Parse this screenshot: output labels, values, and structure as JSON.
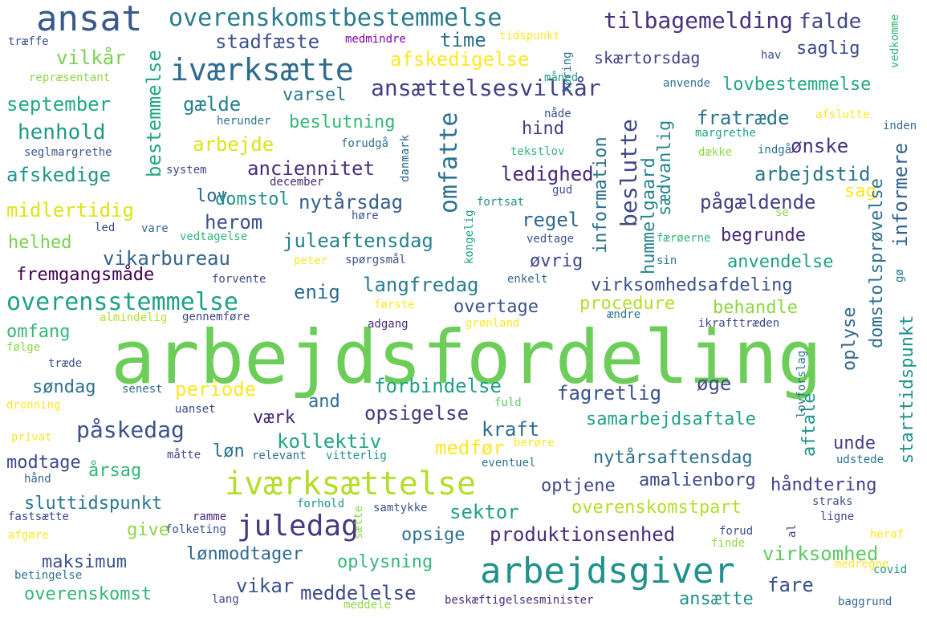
{
  "word_cloud": {
    "words": [
      {
        "text": "arbejdsfordeling",
        "color": "#6cce59"
      },
      {
        "text": "ansat",
        "color": "#3a5a8c"
      },
      {
        "text": "overenskomstbestemmelse",
        "color": "#287d8e"
      },
      {
        "text": "iværksætte",
        "color": "#2e6b8e"
      },
      {
        "text": "iværksættelse",
        "color": "#b4de2c"
      },
      {
        "text": "arbejdsgiver",
        "color": "#21918c"
      },
      {
        "text": "tilbagemelding",
        "color": "#46337f"
      },
      {
        "text": "falde",
        "color": "#3e4a89"
      },
      {
        "text": "ansættelsesvilkår",
        "color": "#424086"
      },
      {
        "text": "omfatte",
        "color": "#2c728e"
      },
      {
        "text": "overensstemmelse",
        "color": "#1fa187"
      },
      {
        "text": "juledag",
        "color": "#443a83"
      },
      {
        "text": "påskedag",
        "color": "#3b528b"
      },
      {
        "text": "beslutte",
        "color": "#3e4989"
      },
      {
        "text": "stadfæste",
        "color": "#3b528b"
      },
      {
        "text": "time",
        "color": "#2d708e"
      },
      {
        "text": "afskedigelse",
        "color": "#fde725"
      },
      {
        "text": "saglig",
        "color": "#3e4989"
      },
      {
        "text": "skærtorsdag",
        "color": "#414487"
      },
      {
        "text": "vilkår",
        "color": "#7ad151"
      },
      {
        "text": "lovbestemmelse",
        "color": "#22a884"
      },
      {
        "text": "september",
        "color": "#22a884"
      },
      {
        "text": "gælde",
        "color": "#26828e"
      },
      {
        "text": "varsel",
        "color": "#2a788e"
      },
      {
        "text": "fratræde",
        "color": "#2a788e"
      },
      {
        "text": "henhold",
        "color": "#1f998a"
      },
      {
        "text": "beslutning",
        "color": "#35b779"
      },
      {
        "text": "hind",
        "color": "#433e85"
      },
      {
        "text": "ønske",
        "color": "#46337f"
      },
      {
        "text": "arbejde",
        "color": "#dde318"
      },
      {
        "text": "bestemmelse",
        "color": "#22a884"
      },
      {
        "text": "afskedige",
        "color": "#1f968b"
      },
      {
        "text": "anciennitet",
        "color": "#472d7b"
      },
      {
        "text": "ledighed",
        "color": "#482878"
      },
      {
        "text": "arbejdstid",
        "color": "#2a788e"
      },
      {
        "text": "informere",
        "color": "#33638d"
      },
      {
        "text": "lov",
        "color": "#31688e"
      },
      {
        "text": "domstol",
        "color": "#21918c"
      },
      {
        "text": "nytårsdag",
        "color": "#355f8d"
      },
      {
        "text": "sag",
        "color": "#fde725"
      },
      {
        "text": "midlertidig",
        "color": "#dde318"
      },
      {
        "text": "pågældende",
        "color": "#424086"
      },
      {
        "text": "information",
        "color": "#2c728e"
      },
      {
        "text": "sædvanlig",
        "color": "#25858e"
      },
      {
        "text": "hummelgaard",
        "color": "#26828e"
      },
      {
        "text": "herom",
        "color": "#3b528b"
      },
      {
        "text": "juleaftensdag",
        "color": "#25838e"
      },
      {
        "text": "regel",
        "color": "#31688e"
      },
      {
        "text": "begrunde",
        "color": "#482878"
      },
      {
        "text": "helhed",
        "color": "#7ad151"
      },
      {
        "text": "domstolsprøvelse",
        "color": "#2c728e"
      },
      {
        "text": "vikarbureau",
        "color": "#33638d"
      },
      {
        "text": "øvrig",
        "color": "#3e4989"
      },
      {
        "text": "anvendelse",
        "color": "#1fa187"
      },
      {
        "text": "fremgangsmåde",
        "color": "#440154"
      },
      {
        "text": "enig",
        "color": "#2e6b8e"
      },
      {
        "text": "langfredag",
        "color": "#287d8e"
      },
      {
        "text": "virksomhedsafdeling",
        "color": "#3b528b"
      },
      {
        "text": "procedure",
        "color": "#b4de2c"
      },
      {
        "text": "overtage",
        "color": "#3b528b"
      },
      {
        "text": "behandle",
        "color": "#8fd744"
      },
      {
        "text": "oplyse",
        "color": "#31688e"
      },
      {
        "text": "starttidspunkt",
        "color": "#21918c"
      },
      {
        "text": "omfang",
        "color": "#35b779"
      },
      {
        "text": "periode",
        "color": "#fde725"
      },
      {
        "text": "søndag",
        "color": "#2d708e"
      },
      {
        "text": "forbindelse",
        "color": "#1fa187"
      },
      {
        "text": "øge",
        "color": "#3e4a89"
      },
      {
        "text": "fagretlig",
        "color": "#3b528b"
      },
      {
        "text": "and",
        "color": "#2d708e"
      },
      {
        "text": "opsigelse",
        "color": "#443983"
      },
      {
        "text": "værk",
        "color": "#482878"
      },
      {
        "text": "kraft",
        "color": "#2e6b8e"
      },
      {
        "text": "samarbejdsaftale",
        "color": "#1fa187"
      },
      {
        "text": "aftale",
        "color": "#1f968b"
      },
      {
        "text": "unde",
        "color": "#433e85"
      },
      {
        "text": "kollektiv",
        "color": "#20a386"
      },
      {
        "text": "medfør",
        "color": "#fde725"
      },
      {
        "text": "modtage",
        "color": "#3e4989"
      },
      {
        "text": "årsag",
        "color": "#35b779"
      },
      {
        "text": "løn",
        "color": "#2c728e"
      },
      {
        "text": "nytårsaftensdag",
        "color": "#2d708e"
      },
      {
        "text": "optjene",
        "color": "#3e4989"
      },
      {
        "text": "amalienborg",
        "color": "#3e4989"
      },
      {
        "text": "håndtering",
        "color": "#414487"
      },
      {
        "text": "sluttidspunkt",
        "color": "#2a788e"
      },
      {
        "text": "sektor",
        "color": "#1fa187"
      },
      {
        "text": "overenskomstpart",
        "color": "#b4de2c"
      },
      {
        "text": "give",
        "color": "#8fd744"
      },
      {
        "text": "opsige",
        "color": "#2c728e"
      },
      {
        "text": "produktionsenhed",
        "color": "#472d7b"
      },
      {
        "text": "maksimum",
        "color": "#3b528b"
      },
      {
        "text": "lønmodtager",
        "color": "#31688e"
      },
      {
        "text": "oplysning",
        "color": "#35b779"
      },
      {
        "text": "virksomhed",
        "color": "#5ec962"
      },
      {
        "text": "vikar",
        "color": "#3b528b"
      },
      {
        "text": "meddelelse",
        "color": "#3e4989"
      },
      {
        "text": "fare",
        "color": "#3b528b"
      },
      {
        "text": "overenskomst",
        "color": "#35b779"
      },
      {
        "text": "ansætte",
        "color": "#21918c"
      },
      {
        "text": "træffe",
        "color": "#3b528b"
      },
      {
        "text": "medmindre",
        "color": "#7e03a8"
      },
      {
        "text": "tidspunkt",
        "color": "#fde725"
      },
      {
        "text": "høring",
        "color": "#2d708e"
      },
      {
        "text": "hav",
        "color": "#3e4989"
      },
      {
        "text": "vedkomme",
        "color": "#35b779"
      },
      {
        "text": "repræsentant",
        "color": "#8fd744"
      },
      {
        "text": "måned",
        "color": "#1fa187"
      },
      {
        "text": "anvende",
        "color": "#2c728e"
      },
      {
        "text": "herunder",
        "color": "#2c728e"
      },
      {
        "text": "nåde",
        "color": "#3b528b"
      },
      {
        "text": "afslutte",
        "color": "#fde725"
      },
      {
        "text": "margrethe",
        "color": "#20a386"
      },
      {
        "text": "inden",
        "color": "#31688e"
      },
      {
        "text": "seglmargrethe",
        "color": "#3b528b"
      },
      {
        "text": "forudgå",
        "color": "#2c728e"
      },
      {
        "text": "danmark",
        "color": "#31688e"
      },
      {
        "text": "tekstlov",
        "color": "#35b779"
      },
      {
        "text": "dække",
        "color": "#8fd744"
      },
      {
        "text": "indgå",
        "color": "#2d708e"
      },
      {
        "text": "system",
        "color": "#3e4989"
      },
      {
        "text": "december",
        "color": "#482878"
      },
      {
        "text": "fortsat",
        "color": "#21918c"
      },
      {
        "text": "gud",
        "color": "#3b528b"
      },
      {
        "text": "høre",
        "color": "#3b528b"
      },
      {
        "text": "se",
        "color": "#8fd744"
      },
      {
        "text": "led",
        "color": "#3e4989"
      },
      {
        "text": "vare",
        "color": "#31688e"
      },
      {
        "text": "vedtagelse",
        "color": "#35b779"
      },
      {
        "text": "kongelig",
        "color": "#1fa187"
      },
      {
        "text": "vedtage",
        "color": "#3b528b"
      },
      {
        "text": "færøerne",
        "color": "#35b779"
      },
      {
        "text": "peter",
        "color": "#fde725"
      },
      {
        "text": "spørgsmål",
        "color": "#3b528b"
      },
      {
        "text": "sin",
        "color": "#2c728e"
      },
      {
        "text": "forvente",
        "color": "#3e4989"
      },
      {
        "text": "enkelt",
        "color": "#31688e"
      },
      {
        "text": "gø",
        "color": "#2a788e"
      },
      {
        "text": "første",
        "color": "#fde725"
      },
      {
        "text": "almindelig",
        "color": "#b4de2c"
      },
      {
        "text": "gennemføre",
        "color": "#3e4989"
      },
      {
        "text": "adgang",
        "color": "#472d7b"
      },
      {
        "text": "grønland",
        "color": "#fde725"
      },
      {
        "text": "ændre",
        "color": "#2a788e"
      },
      {
        "text": "ikrafttræden",
        "color": "#3e4989"
      },
      {
        "text": "følge",
        "color": "#8fd744"
      },
      {
        "text": "træde",
        "color": "#3b528b"
      },
      {
        "text": "lovforslag",
        "color": "#2c728e"
      },
      {
        "text": "senest",
        "color": "#31688e"
      },
      {
        "text": "fuld",
        "color": "#5ec962"
      },
      {
        "text": "dronning",
        "color": "#fde725"
      },
      {
        "text": "uanset",
        "color": "#3e4989"
      },
      {
        "text": "privat",
        "color": "#fde725"
      },
      {
        "text": "berøre",
        "color": "#fde725"
      },
      {
        "text": "måtte",
        "color": "#3e4989"
      },
      {
        "text": "relevant",
        "color": "#2c728e"
      },
      {
        "text": "vitterlig",
        "color": "#21918c"
      },
      {
        "text": "udstede",
        "color": "#2c728e"
      },
      {
        "text": "hånd",
        "color": "#31688e"
      },
      {
        "text": "eventuel",
        "color": "#2c728e"
      },
      {
        "text": "forhold",
        "color": "#21918c"
      },
      {
        "text": "samtykke",
        "color": "#3b528b"
      },
      {
        "text": "straks",
        "color": "#3b528b"
      },
      {
        "text": "fastsætte",
        "color": "#3e4989"
      },
      {
        "text": "ramme",
        "color": "#482878"
      },
      {
        "text": "sætte",
        "color": "#8fd744"
      },
      {
        "text": "ligne",
        "color": "#3e4989"
      },
      {
        "text": "afgøre",
        "color": "#fde725"
      },
      {
        "text": "folketing",
        "color": "#3b528b"
      },
      {
        "text": "forud",
        "color": "#3b528b"
      },
      {
        "text": "heraf",
        "color": "#fde725"
      },
      {
        "text": "finde",
        "color": "#8fd744"
      },
      {
        "text": "al",
        "color": "#3e4989"
      },
      {
        "text": "covid",
        "color": "#21918c"
      },
      {
        "text": "betingelse",
        "color": "#2c728e"
      },
      {
        "text": "medregne",
        "color": "#fde725"
      },
      {
        "text": "lang",
        "color": "#3e4989"
      },
      {
        "text": "beskæftigelsesminister",
        "color": "#472d7b"
      },
      {
        "text": "meddele",
        "color": "#8fd744"
      },
      {
        "text": "baggrund",
        "color": "#31688e"
      }
    ]
  }
}
